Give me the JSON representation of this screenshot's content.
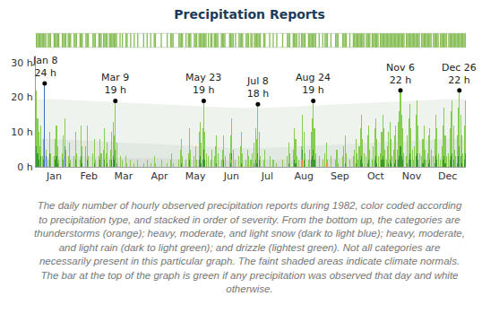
{
  "chart_data": {
    "type": "bar",
    "title": "Precipitation Reports",
    "stacked": true,
    "grid": false,
    "x": [
      1,
      2,
      3,
      4,
      5,
      6,
      7,
      8,
      9,
      10,
      11,
      12,
      13,
      14,
      15,
      16,
      17,
      18,
      19,
      20,
      21,
      22,
      23,
      24,
      25,
      26,
      27,
      28,
      29,
      30,
      31,
      32,
      33,
      34,
      35,
      36,
      37,
      38,
      39,
      40,
      41,
      42,
      43,
      44,
      45,
      46,
      47,
      48,
      49,
      50,
      51,
      52,
      53,
      54,
      55,
      56,
      57,
      58,
      59,
      60,
      61,
      62,
      63,
      64,
      65,
      66,
      67,
      68,
      69,
      70,
      71,
      72,
      73,
      74,
      75,
      76,
      77,
      78,
      79,
      80,
      81,
      82,
      83,
      84,
      85,
      86,
      87,
      88,
      89,
      90,
      91,
      92,
      93,
      94,
      95,
      96,
      97,
      98,
      99,
      100,
      101,
      102,
      103,
      104,
      105,
      106,
      107,
      108,
      109,
      110,
      111,
      112,
      113,
      114,
      115,
      116,
      117,
      118,
      119,
      120,
      121,
      122,
      123,
      124,
      125,
      126,
      127,
      128,
      129,
      130,
      131,
      132,
      133,
      134,
      135,
      136,
      137,
      138,
      139,
      140,
      141,
      142,
      143,
      144,
      145,
      146,
      147,
      148,
      149,
      150,
      151,
      152,
      153,
      154,
      155,
      156,
      157,
      158,
      159,
      160,
      161,
      162,
      163,
      164,
      165,
      166,
      167,
      168,
      169,
      170,
      171,
      172,
      173,
      174,
      175,
      176,
      177,
      178,
      179,
      180,
      181,
      182,
      183,
      184,
      185,
      186,
      187,
      188,
      189,
      190,
      191,
      192,
      193,
      194,
      195,
      196,
      197,
      198,
      199,
      200,
      201,
      202,
      203,
      204,
      205,
      206,
      207,
      208,
      209,
      210,
      211,
      212,
      213,
      214,
      215,
      216,
      217,
      218,
      219,
      220,
      221,
      222,
      223,
      224,
      225,
      226,
      227,
      228,
      229,
      230,
      231,
      232,
      233,
      234,
      235,
      236,
      237,
      238,
      239,
      240,
      241,
      242,
      243,
      244,
      245,
      246,
      247,
      248,
      249,
      250,
      251,
      252,
      253,
      254,
      255,
      256,
      257,
      258,
      259,
      260,
      261,
      262,
      263,
      264,
      265,
      266,
      267,
      268,
      269,
      270,
      271,
      272,
      273,
      274,
      275,
      276,
      277,
      278,
      279,
      280,
      281,
      282,
      283,
      284,
      285,
      286,
      287,
      288,
      289,
      290,
      291,
      292,
      293,
      294,
      295,
      296,
      297,
      298,
      299,
      300,
      301,
      302,
      303,
      304,
      305,
      306,
      307,
      308,
      309,
      310,
      311,
      312,
      313,
      314,
      315,
      316,
      317,
      318,
      319,
      320,
      321,
      322,
      323,
      324,
      325,
      326,
      327,
      328,
      329,
      330,
      331,
      332,
      333,
      334,
      335,
      336,
      337,
      338,
      339,
      340,
      341,
      342,
      343,
      344,
      345,
      346,
      347,
      348,
      349,
      350,
      351,
      352,
      353,
      354,
      355,
      356,
      357,
      358,
      359,
      360,
      361,
      362,
      363,
      364,
      365
    ],
    "series": [
      {
        "color": "#ea8a1e",
        "x": [
          167,
          227,
          247
        ],
        "values": [
          2,
          2,
          1
        ]
      },
      {
        "color": "#3d6bc4",
        "x": [
          8,
          9,
          12,
          25
        ],
        "values": [
          24,
          3,
          2,
          3
        ]
      },
      {
        "color": "#3a9a2f",
        "values": [
          6,
          4,
          2,
          0,
          3,
          0,
          2,
          0,
          0,
          0,
          0,
          2,
          0,
          0,
          0,
          0,
          2,
          3,
          1,
          0,
          0,
          0,
          0,
          2,
          3,
          0,
          0,
          0,
          1,
          0,
          0,
          0,
          0,
          2,
          0,
          0,
          0,
          0,
          3,
          1,
          0,
          0,
          0,
          2,
          0,
          0,
          0,
          0,
          0,
          1,
          0,
          0,
          0,
          0,
          2,
          0,
          0,
          0,
          2,
          0,
          1,
          0,
          0,
          0,
          2,
          3,
          2,
          5,
          1,
          0,
          0,
          0,
          0,
          0,
          0,
          0,
          0,
          0,
          0,
          0,
          0,
          0,
          0,
          0,
          0,
          0,
          0,
          0,
          0,
          0,
          0,
          0,
          0,
          0,
          0,
          0,
          0,
          0,
          0,
          0,
          0,
          0,
          0,
          0,
          0,
          0,
          0,
          0,
          0,
          0,
          0,
          0,
          0,
          0,
          0,
          0,
          0,
          0,
          0,
          0,
          0,
          0,
          0,
          1,
          0,
          0,
          0,
          0,
          0,
          0,
          2,
          0,
          0,
          0,
          0,
          0,
          0,
          0,
          2,
          3,
          1,
          2,
          5,
          2,
          0,
          0,
          0,
          0,
          0,
          0,
          0,
          0,
          0,
          1,
          0,
          0,
          0,
          0,
          0,
          2,
          0,
          0,
          0,
          0,
          0,
          1,
          2,
          0,
          0,
          0,
          0,
          0,
          0,
          0,
          1,
          0,
          0,
          0,
          0,
          0,
          0,
          0,
          0,
          0,
          0,
          1,
          2,
          1,
          4,
          2,
          0,
          0,
          0,
          0,
          0,
          0,
          0,
          0,
          0,
          0,
          0,
          0,
          0,
          0,
          0,
          0,
          0,
          0,
          0,
          0,
          0,
          0,
          0,
          0,
          1,
          0,
          0,
          0,
          0,
          2,
          1,
          0,
          0,
          0,
          0,
          0,
          3,
          2,
          0,
          0,
          0,
          0,
          0,
          2,
          3,
          5,
          2,
          0,
          0,
          0,
          0,
          0,
          0,
          0,
          0,
          0,
          0,
          0,
          0,
          0,
          0,
          0,
          0,
          0,
          0,
          0,
          0,
          0,
          0,
          0,
          0,
          0,
          1,
          0,
          0,
          0,
          0,
          0,
          0,
          0,
          0,
          1,
          0,
          0,
          0,
          2,
          3,
          1,
          0,
          0,
          0,
          1,
          2,
          0,
          0,
          0,
          0,
          2,
          3,
          1,
          0,
          0,
          0,
          2,
          3,
          2,
          0,
          0,
          0,
          1,
          2,
          1,
          0,
          0,
          1,
          2,
          0,
          2,
          3,
          6,
          3,
          2,
          0,
          0,
          0,
          1,
          2,
          4,
          2,
          0,
          0,
          0,
          3,
          4,
          2,
          0,
          0,
          0,
          1,
          2,
          0,
          0,
          0,
          1,
          2,
          0,
          0,
          0,
          1,
          3,
          2,
          0,
          0,
          0,
          0,
          2,
          3,
          1,
          0,
          0,
          0,
          2,
          3,
          4,
          2,
          0,
          0,
          1,
          3,
          6,
          3,
          1,
          0,
          2,
          4
        ]
      },
      {
        "color": "#86cc4e",
        "values": [
          16,
          10,
          8,
          6,
          9,
          3,
          6,
          0,
          2,
          0,
          2,
          6,
          4,
          0,
          0,
          3,
          6,
          9,
          5,
          2,
          0,
          0,
          4,
          7,
          8,
          5,
          0,
          3,
          6,
          2,
          0,
          0,
          3,
          8,
          4,
          0,
          0,
          2,
          9,
          5,
          0,
          0,
          6,
          10,
          3,
          0,
          0,
          0,
          4,
          7,
          2,
          0,
          0,
          3,
          6,
          4,
          0,
          5,
          9,
          4,
          6,
          0,
          2,
          5,
          8,
          10,
          7,
          14,
          6,
          0,
          0,
          3,
          0,
          2,
          0,
          0,
          3,
          1,
          0,
          0,
          2,
          0,
          0,
          1,
          0,
          0,
          2,
          0,
          0,
          0,
          0,
          1,
          0,
          0,
          2,
          0,
          0,
          1,
          0,
          0,
          3,
          1,
          0,
          0,
          0,
          0,
          2,
          0,
          0,
          0,
          0,
          1,
          0,
          0,
          2,
          4,
          1,
          0,
          0,
          0,
          0,
          2,
          5,
          7,
          3,
          0,
          0,
          2,
          0,
          4,
          9,
          5,
          0,
          0,
          3,
          6,
          2,
          0,
          8,
          10,
          6,
          9,
          14,
          8,
          4,
          0,
          3,
          0,
          2,
          5,
          0,
          3,
          6,
          8,
          4,
          0,
          0,
          2,
          5,
          7,
          3,
          0,
          0,
          0,
          4,
          8,
          10,
          5,
          0,
          2,
          0,
          0,
          3,
          6,
          9,
          4,
          0,
          0,
          2,
          5,
          3,
          0,
          2,
          4,
          0,
          6,
          9,
          7,
          14,
          8,
          3,
          0,
          0,
          2,
          5,
          0,
          0,
          0,
          3,
          0,
          0,
          2,
          0,
          0,
          1,
          0,
          0,
          0,
          0,
          2,
          0,
          0,
          0,
          3,
          6,
          4,
          0,
          0,
          5,
          9,
          7,
          3,
          0,
          2,
          0,
          6,
          10,
          8,
          4,
          0,
          0,
          2,
          5,
          8,
          11,
          14,
          9,
          4,
          0,
          0,
          3,
          0,
          0,
          2,
          0,
          4,
          6,
          2,
          0,
          0,
          3,
          0,
          0,
          0,
          2,
          5,
          1,
          0,
          0,
          0,
          3,
          6,
          8,
          4,
          0,
          0,
          2,
          0,
          0,
          3,
          5,
          7,
          4,
          2,
          6,
          9,
          12,
          7,
          4,
          0,
          3,
          8,
          10,
          5,
          0,
          2,
          6,
          9,
          11,
          7,
          3,
          0,
          4,
          8,
          12,
          9,
          5,
          2,
          6,
          9,
          11,
          7,
          3,
          5,
          8,
          10,
          5,
          11,
          13,
          16,
          12,
          9,
          4,
          0,
          3,
          8,
          12,
          14,
          9,
          5,
          2,
          6,
          12,
          15,
          10,
          4,
          0,
          3,
          7,
          10,
          5,
          2,
          4,
          8,
          9,
          5,
          0,
          3,
          7,
          12,
          9,
          4,
          0,
          2,
          6,
          10,
          14,
          8,
          3,
          0,
          4,
          9,
          13,
          15,
          10,
          5,
          3,
          8,
          14,
          16,
          12,
          8,
          4,
          10,
          15
        ]
      }
    ],
    "xlim": [
      0.5,
      365.5
    ],
    "xticks": [
      {
        "value": 16,
        "label": "Jan"
      },
      {
        "value": 45.5,
        "label": "Feb"
      },
      {
        "value": 75,
        "label": "Mar"
      },
      {
        "value": 105.5,
        "label": "Apr"
      },
      {
        "value": 136,
        "label": "May"
      },
      {
        "value": 166.5,
        "label": "Jun"
      },
      {
        "value": 197,
        "label": "Jul"
      },
      {
        "value": 228,
        "label": "Aug"
      },
      {
        "value": 258.5,
        "label": "Sep"
      },
      {
        "value": 289,
        "label": "Oct"
      },
      {
        "value": 319.5,
        "label": "Nov"
      },
      {
        "value": 350,
        "label": "Dec"
      }
    ],
    "ylim": [
      0,
      32
    ],
    "yticks": [
      {
        "value": 0,
        "label": "0 h"
      },
      {
        "value": 10,
        "label": "10 h"
      },
      {
        "value": 20,
        "label": "20 h"
      },
      {
        "value": 30,
        "label": "30 h"
      }
    ],
    "annotations": [
      {
        "x": 8,
        "y": 24,
        "text": [
          "Jan 8",
          "24 h"
        ]
      },
      {
        "x": 68,
        "y": 19,
        "text": [
          "Mar 9",
          "19 h"
        ]
      },
      {
        "x": 143,
        "y": 19,
        "text": [
          "May 23",
          "19 h"
        ]
      },
      {
        "x": 189,
        "y": 18,
        "text": [
          "Jul 8",
          "18 h"
        ]
      },
      {
        "x": 236,
        "y": 19,
        "text": [
          "Aug 24",
          "19 h"
        ]
      },
      {
        "x": 310,
        "y": 22,
        "text": [
          "Nov 6",
          "22 h"
        ]
      },
      {
        "x": 360,
        "y": 22,
        "text": [
          "Dec 26",
          "22 h"
        ]
      }
    ],
    "climate_normals": {
      "x": [
        1,
        16,
        46,
        75,
        106,
        136,
        167,
        197,
        228,
        259,
        289,
        320,
        350,
        365
      ],
      "bands": [
        {
          "color": "#eef3ee",
          "values": [
            19.5,
            19.5,
            19,
            18.5,
            18,
            17.5,
            17,
            17,
            17.5,
            18,
            18.5,
            19,
            19.5,
            19.5
          ]
        },
        {
          "color": "#e2e9e2",
          "values": [
            8,
            8,
            7.5,
            7,
            6.5,
            6,
            5.5,
            5.5,
            6,
            6.5,
            7,
            7.5,
            8,
            8
          ]
        },
        {
          "color": "#d7dfd7",
          "values": [
            3,
            3,
            3,
            2.5,
            2.5,
            2,
            2,
            2,
            2,
            2.5,
            2.5,
            3,
            3,
            3
          ]
        }
      ]
    },
    "caption": "The daily number of hourly observed precipitation reports during 1982, color coded according to precipitation type, and stacked in order of severity. From the bottom up, the categories are thunderstorms (orange); heavy, moderate, and light snow (dark to light blue); heavy, moderate, and light rain (dark to light green); and drizzle (lightest green). Not all categories are necessarily present in this particular graph. The faint shaded areas indicate climate normals. The bar at the top of the graph is green if any precipitation was observed that day and white otherwise."
  }
}
